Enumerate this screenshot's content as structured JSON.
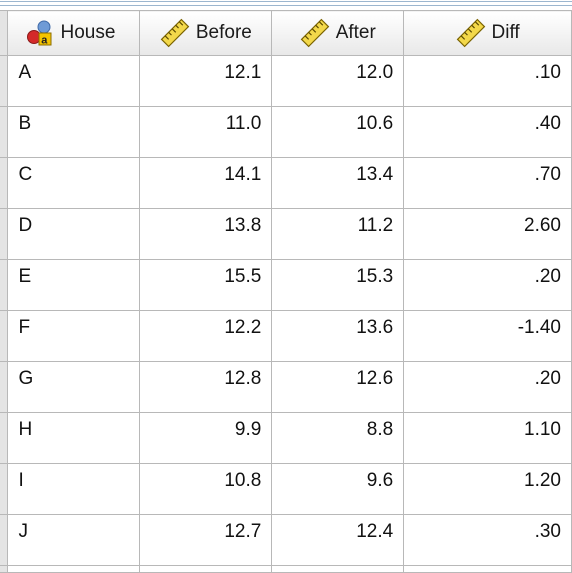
{
  "colors": {
    "gridline": "#b8b8b8",
    "header_bg": "#e8e8e8",
    "accent": "#9cb6cf"
  },
  "columns": [
    {
      "label": "House",
      "icon": "nominal-variable-icon"
    },
    {
      "label": "Before",
      "icon": "scale-variable-icon"
    },
    {
      "label": "After",
      "icon": "scale-variable-icon"
    },
    {
      "label": "Diff",
      "icon": "scale-variable-icon"
    }
  ],
  "rows": [
    {
      "house": "A",
      "before": "12.1",
      "after": "12.0",
      "diff": ".10"
    },
    {
      "house": "B",
      "before": "11.0",
      "after": "10.6",
      "diff": ".40"
    },
    {
      "house": "C",
      "before": "14.1",
      "after": "13.4",
      "diff": ".70"
    },
    {
      "house": "D",
      "before": "13.8",
      "after": "11.2",
      "diff": "2.60"
    },
    {
      "house": "E",
      "before": "15.5",
      "after": "15.3",
      "diff": ".20"
    },
    {
      "house": "F",
      "before": "12.2",
      "after": "13.6",
      "diff": "-1.40"
    },
    {
      "house": "G",
      "before": "12.8",
      "after": "12.6",
      "diff": ".20"
    },
    {
      "house": "H",
      "before": "9.9",
      "after": "8.8",
      "diff": "1.10"
    },
    {
      "house": "I",
      "before": "10.8",
      "after": "9.6",
      "diff": "1.20"
    },
    {
      "house": "J",
      "before": "12.7",
      "after": "12.4",
      "diff": ".30"
    }
  ]
}
